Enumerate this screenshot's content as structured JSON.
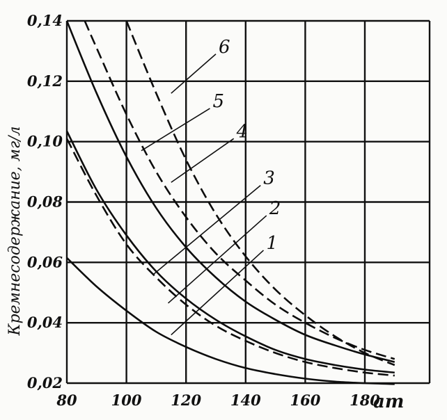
{
  "chart_data": {
    "type": "line",
    "title": "",
    "xlabel": "",
    "x_unit": "ат",
    "ylabel": "Кремнесодержание, мг/л",
    "xlim": [
      80,
      190
    ],
    "ylim": [
      0.02,
      0.14
    ],
    "x_ticks": [
      "80",
      "100",
      "120",
      "140",
      "160",
      "180"
    ],
    "y_ticks": [
      "0,02",
      "0,04",
      "0,06",
      "0,08",
      "0,10",
      "0,12",
      "0,14"
    ],
    "grid": true,
    "series": [
      {
        "name": "1",
        "style": "solid",
        "x": [
          80,
          90,
          100,
          110,
          120,
          130,
          140,
          150,
          160,
          170,
          180,
          190
        ],
        "y": [
          0.0615,
          0.052,
          0.044,
          0.037,
          0.032,
          0.028,
          0.025,
          0.023,
          0.0215,
          0.0205,
          0.02,
          0.0197
        ]
      },
      {
        "name": "2",
        "style": "dashed",
        "x": [
          80,
          90,
          100,
          110,
          120,
          130,
          140,
          150,
          160,
          170,
          180,
          190
        ],
        "y": [
          0.101,
          0.082,
          0.066,
          0.055,
          0.046,
          0.039,
          0.034,
          0.03,
          0.027,
          0.025,
          0.0235,
          0.0225
        ]
      },
      {
        "name": "3",
        "style": "solid",
        "x": [
          80,
          90,
          100,
          110,
          120,
          130,
          140,
          150,
          160,
          170,
          180,
          190
        ],
        "y": [
          0.1035,
          0.084,
          0.069,
          0.057,
          0.048,
          0.041,
          0.0355,
          0.031,
          0.028,
          0.026,
          0.0245,
          0.0235
        ]
      },
      {
        "name": "4",
        "style": "solid",
        "x": [
          80,
          90,
          100,
          110,
          120,
          130,
          140,
          150,
          160,
          170,
          180,
          190
        ],
        "y": [
          0.14,
          0.116,
          0.095,
          0.078,
          0.065,
          0.055,
          0.047,
          0.041,
          0.036,
          0.0325,
          0.0295,
          0.027
        ]
      },
      {
        "name": "5",
        "style": "dashed",
        "x": [
          86,
          90,
          100,
          110,
          120,
          130,
          140,
          150,
          160,
          170,
          180,
          190
        ],
        "y": [
          0.14,
          0.131,
          0.109,
          0.09,
          0.075,
          0.063,
          0.054,
          0.046,
          0.04,
          0.035,
          0.031,
          0.028
        ]
      },
      {
        "name": "6",
        "style": "dashed",
        "x": [
          100,
          110,
          120,
          130,
          140,
          150,
          160,
          170,
          180,
          190
        ],
        "y": [
          0.14,
          0.116,
          0.094,
          0.076,
          0.062,
          0.051,
          0.0425,
          0.0355,
          0.03,
          0.026
        ]
      }
    ],
    "annotations": [
      {
        "label": "6",
        "leader_from": [
          115,
          0.116
        ],
        "leader_to": [
          130,
          0.129
        ]
      },
      {
        "label": "5",
        "leader_from": [
          105,
          0.097
        ],
        "leader_to": [
          128,
          0.111
        ]
      },
      {
        "label": "4",
        "leader_from": [
          115,
          0.0865
        ],
        "leader_to": [
          136,
          0.101
        ]
      },
      {
        "label": "3",
        "leader_from": [
          109,
          0.056
        ],
        "leader_to": [
          145,
          0.0855
        ]
      },
      {
        "label": "2",
        "leader_from": [
          114,
          0.0465
        ],
        "leader_to": [
          147,
          0.0755
        ]
      },
      {
        "label": "1",
        "leader_from": [
          115,
          0.036
        ],
        "leader_to": [
          146,
          0.064
        ]
      }
    ]
  }
}
